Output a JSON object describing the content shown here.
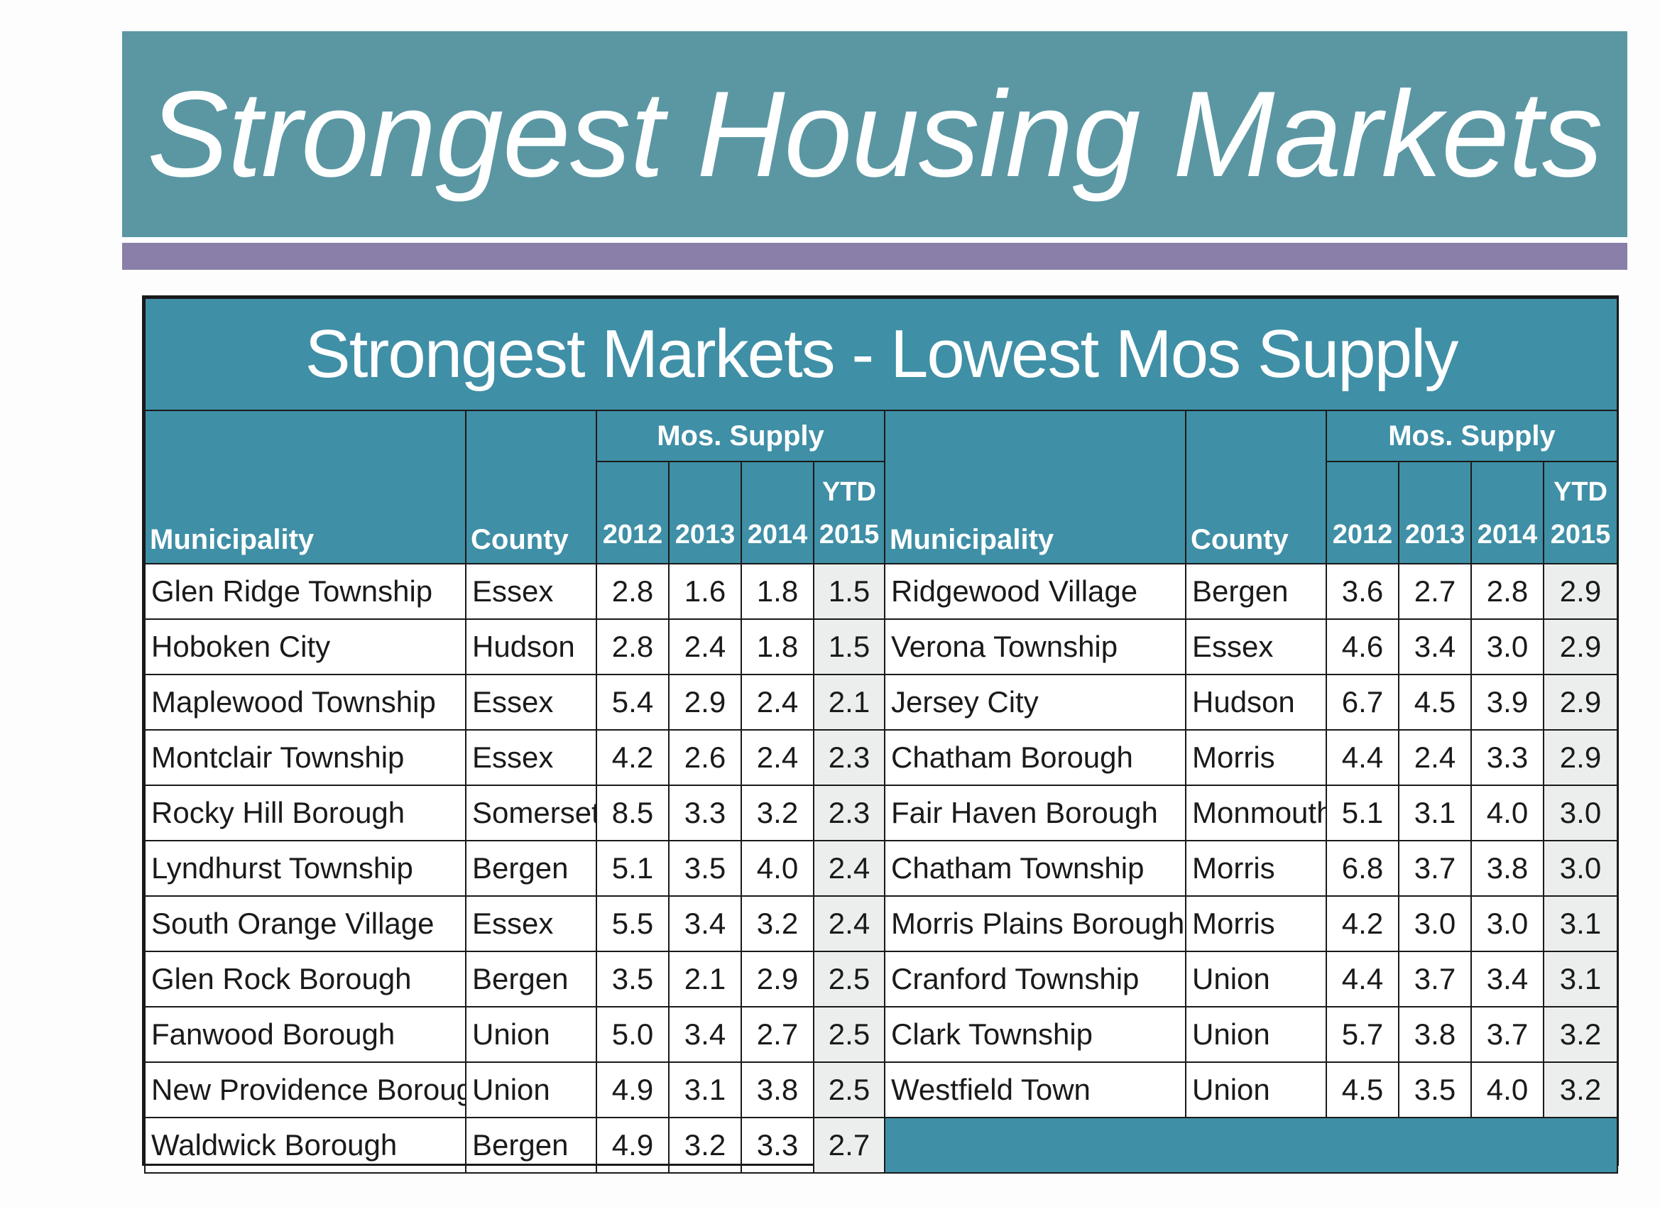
{
  "banner": {
    "title": "Strongest Housing Markets"
  },
  "table": {
    "title": "Strongest Markets - Lowest Mos Supply",
    "headers": {
      "municipality": "Municipality",
      "county": "County",
      "group": "Mos. Supply",
      "y2012": "2012",
      "y2013": "2013",
      "y2014": "2014",
      "ytd": "YTD",
      "y2015": "2015"
    },
    "left_rows": [
      {
        "municipality": "Glen Ridge Township",
        "county": "Essex",
        "v2012": "2.8",
        "v2013": "1.6",
        "v2014": "1.8",
        "v2015": "1.5"
      },
      {
        "municipality": "Hoboken City",
        "county": "Hudson",
        "v2012": "2.8",
        "v2013": "2.4",
        "v2014": "1.8",
        "v2015": "1.5"
      },
      {
        "municipality": "Maplewood Township",
        "county": "Essex",
        "v2012": "5.4",
        "v2013": "2.9",
        "v2014": "2.4",
        "v2015": "2.1"
      },
      {
        "municipality": "Montclair Township",
        "county": "Essex",
        "v2012": "4.2",
        "v2013": "2.6",
        "v2014": "2.4",
        "v2015": "2.3"
      },
      {
        "municipality": "Rocky Hill Borough",
        "county": "Somerset",
        "v2012": "8.5",
        "v2013": "3.3",
        "v2014": "3.2",
        "v2015": "2.3"
      },
      {
        "municipality": "Lyndhurst Township",
        "county": "Bergen",
        "v2012": "5.1",
        "v2013": "3.5",
        "v2014": "4.0",
        "v2015": "2.4"
      },
      {
        "municipality": "South Orange Village",
        "county": "Essex",
        "v2012": "5.5",
        "v2013": "3.4",
        "v2014": "3.2",
        "v2015": "2.4"
      },
      {
        "municipality": "Glen Rock Borough",
        "county": "Bergen",
        "v2012": "3.5",
        "v2013": "2.1",
        "v2014": "2.9",
        "v2015": "2.5"
      },
      {
        "municipality": "Fanwood Borough",
        "county": "Union",
        "v2012": "5.0",
        "v2013": "3.4",
        "v2014": "2.7",
        "v2015": "2.5"
      },
      {
        "municipality": "New Providence Borough",
        "county": "Union",
        "v2012": "4.9",
        "v2013": "3.1",
        "v2014": "3.8",
        "v2015": "2.5"
      },
      {
        "municipality": "Waldwick Borough",
        "county": "Bergen",
        "v2012": "4.9",
        "v2013": "3.2",
        "v2014": "3.3",
        "v2015": "2.7"
      }
    ],
    "right_rows": [
      {
        "municipality": "Ridgewood Village",
        "county": "Bergen",
        "v2012": "3.6",
        "v2013": "2.7",
        "v2014": "2.8",
        "v2015": "2.9"
      },
      {
        "municipality": "Verona Township",
        "county": "Essex",
        "v2012": "4.6",
        "v2013": "3.4",
        "v2014": "3.0",
        "v2015": "2.9"
      },
      {
        "municipality": "Jersey City",
        "county": "Hudson",
        "v2012": "6.7",
        "v2013": "4.5",
        "v2014": "3.9",
        "v2015": "2.9"
      },
      {
        "municipality": "Chatham Borough",
        "county": "Morris",
        "v2012": "4.4",
        "v2013": "2.4",
        "v2014": "3.3",
        "v2015": "2.9"
      },
      {
        "municipality": "Fair Haven Borough",
        "county": "Monmouth",
        "v2012": "5.1",
        "v2013": "3.1",
        "v2014": "4.0",
        "v2015": "3.0"
      },
      {
        "municipality": "Chatham Township",
        "county": "Morris",
        "v2012": "6.8",
        "v2013": "3.7",
        "v2014": "3.8",
        "v2015": "3.0"
      },
      {
        "municipality": "Morris Plains Borough",
        "county": "Morris",
        "v2012": "4.2",
        "v2013": "3.0",
        "v2014": "3.0",
        "v2015": "3.1"
      },
      {
        "municipality": "Cranford Township",
        "county": "Union",
        "v2012": "4.4",
        "v2013": "3.7",
        "v2014": "3.4",
        "v2015": "3.1"
      },
      {
        "municipality": "Clark Township",
        "county": "Union",
        "v2012": "5.7",
        "v2013": "3.8",
        "v2014": "3.7",
        "v2015": "3.2"
      },
      {
        "municipality": "Westfield Town",
        "county": "Union",
        "v2012": "4.5",
        "v2013": "3.5",
        "v2014": "4.0",
        "v2015": "3.2"
      }
    ]
  }
}
